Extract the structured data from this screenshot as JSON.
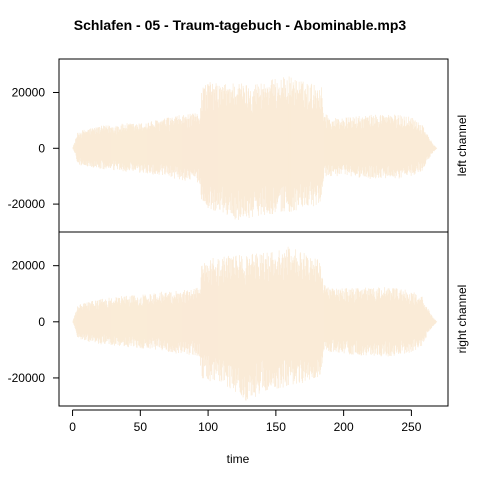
{
  "chart_data": {
    "type": "area",
    "title": "Schlafen - 05 - Traum-tagebuch - Abominable.mp3",
    "xlabel": "time",
    "xlim": [
      -10,
      277
    ],
    "x_ticks": [
      0,
      50,
      100,
      150,
      200,
      250
    ],
    "x_tick_labels": [
      "0",
      "50",
      "100",
      "150",
      "200",
      "250"
    ],
    "y_ticks": [
      -20000,
      0,
      20000
    ],
    "y_tick_labels": [
      "-20000",
      "0",
      "20000"
    ],
    "ylim": [
      -30000,
      32000
    ],
    "fill_color": "#FAEBD7",
    "grid": false,
    "layout": "stacked-panels",
    "series": [
      {
        "name": "left channel",
        "x": [
          0,
          2,
          4,
          10,
          20,
          30,
          40,
          50,
          60,
          70,
          80,
          90,
          94,
          95,
          100,
          110,
          120,
          130,
          140,
          150,
          160,
          170,
          180,
          184,
          185,
          190,
          200,
          210,
          220,
          230,
          240,
          250,
          258,
          262,
          266,
          268,
          269
        ],
        "max": [
          0,
          3000,
          6000,
          7000,
          8000,
          8500,
          9000,
          9000,
          10000,
          11000,
          12000,
          12500,
          13000,
          22000,
          24000,
          23000,
          24000,
          23000,
          24000,
          25000,
          26000,
          24000,
          23000,
          22000,
          14000,
          11000,
          11000,
          11500,
          12000,
          12500,
          12000,
          11500,
          9000,
          5000,
          1500,
          500,
          0
        ],
        "min": [
          0,
          -2000,
          -6000,
          -6500,
          -7500,
          -8000,
          -8500,
          -9000,
          -9500,
          -10500,
          -11500,
          -12000,
          -12500,
          -19000,
          -22000,
          -23000,
          -26000,
          -25000,
          -24000,
          -23500,
          -23000,
          -22000,
          -21000,
          -20000,
          -11000,
          -10000,
          -10000,
          -10500,
          -11000,
          -11000,
          -11000,
          -10000,
          -8000,
          -4500,
          -1500,
          -500,
          0
        ]
      },
      {
        "name": "right channel",
        "x": [
          0,
          2,
          4,
          10,
          20,
          30,
          40,
          50,
          60,
          70,
          80,
          90,
          94,
          95,
          100,
          110,
          120,
          130,
          140,
          150,
          160,
          170,
          180,
          184,
          185,
          190,
          200,
          210,
          220,
          230,
          240,
          250,
          258,
          262,
          266,
          268,
          269
        ],
        "max": [
          0,
          3000,
          6000,
          7000,
          8000,
          9000,
          9500,
          9500,
          10500,
          11000,
          11500,
          12000,
          12500,
          21000,
          23000,
          23000,
          24000,
          24000,
          25000,
          25000,
          27000,
          25000,
          23500,
          22000,
          14000,
          12000,
          12000,
          12500,
          12000,
          12500,
          12000,
          11000,
          9000,
          5000,
          1500,
          500,
          0
        ],
        "min": [
          0,
          -2500,
          -6000,
          -7000,
          -8000,
          -8500,
          -9000,
          -9500,
          -10000,
          -11000,
          -11500,
          -12000,
          -12500,
          -20000,
          -21000,
          -22000,
          -25000,
          -29000,
          -25000,
          -24000,
          -23000,
          -22000,
          -20000,
          -19000,
          -11000,
          -11000,
          -11500,
          -12000,
          -12000,
          -12500,
          -12000,
          -11000,
          -8500,
          -4500,
          -1500,
          -500,
          0
        ]
      }
    ]
  }
}
